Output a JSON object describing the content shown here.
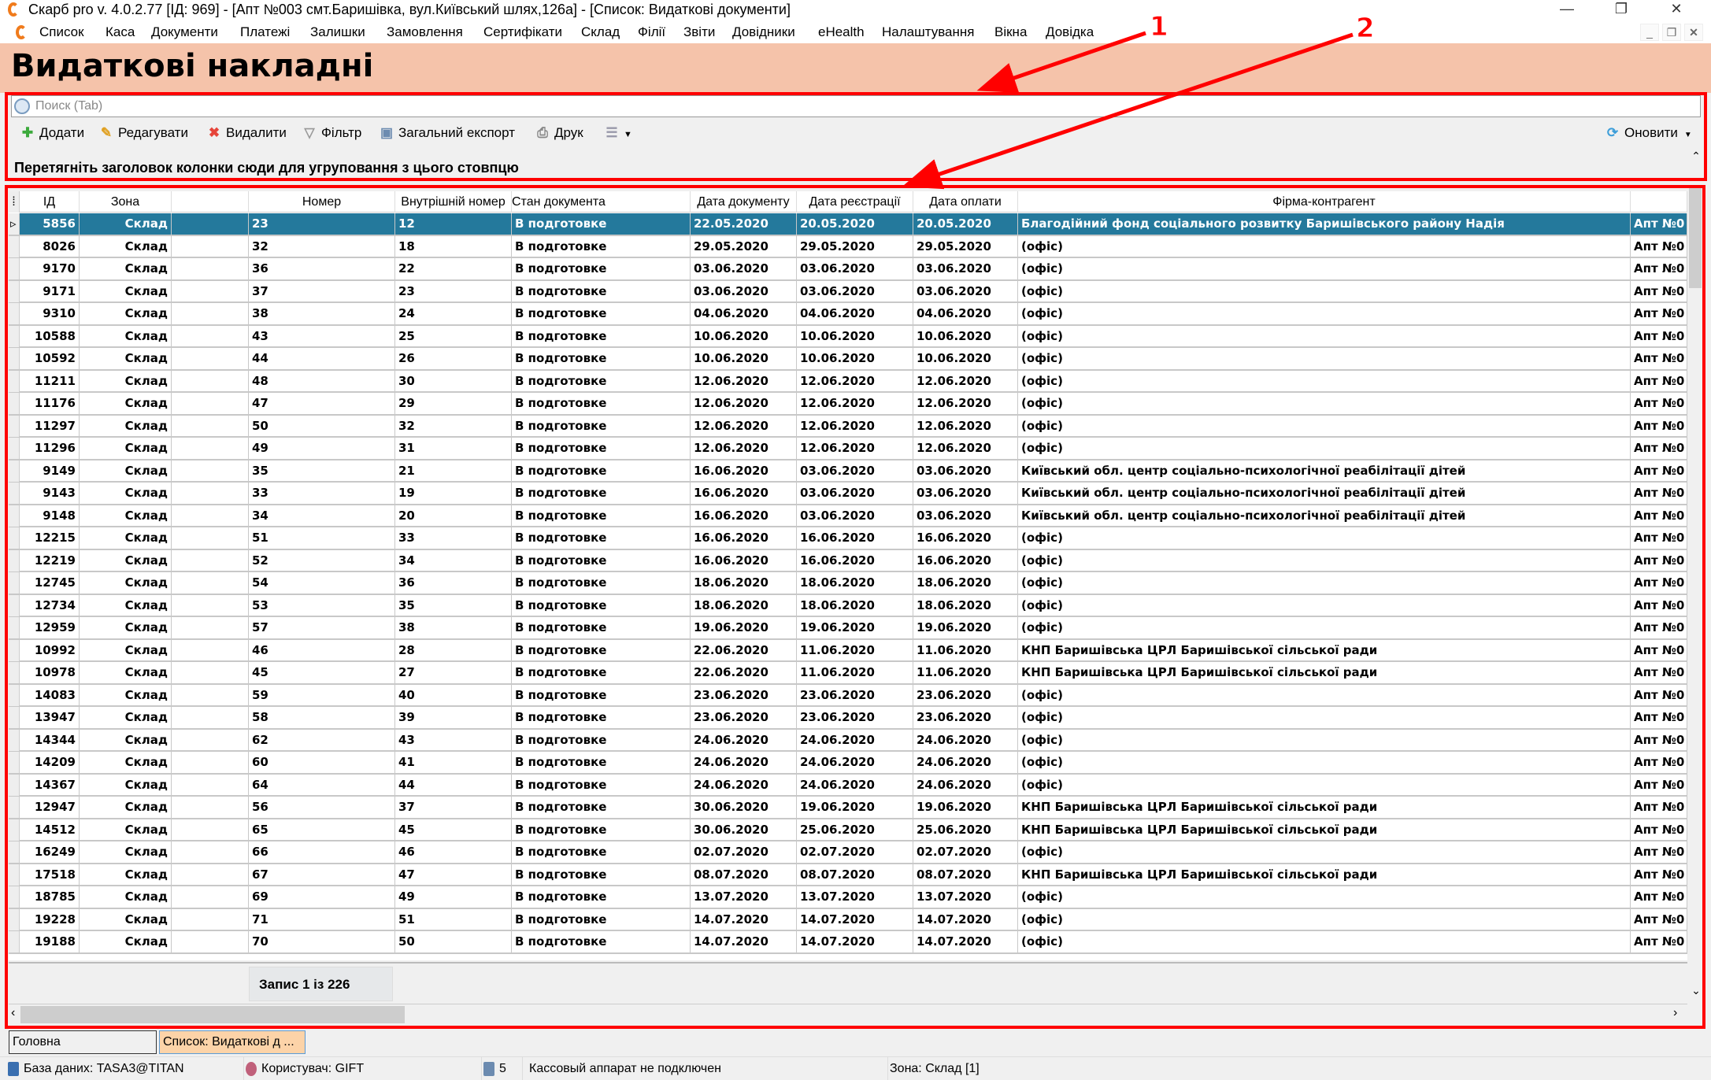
{
  "window": {
    "title": "Скарб pro v. 4.0.2.77 [ІД: 969] - [Апт №003 смт.Баришівка, вул.Київський шлях,126а] - [Список: Видаткові документи]"
  },
  "menu": [
    "Список",
    "Каса",
    "Документи",
    "Платежі",
    "Залишки",
    "Замовлення",
    "Сертифікати",
    "Склад",
    "Філії",
    "Звіти",
    "Довідники",
    "eHealth",
    "Налаштування",
    "Вікна",
    "Довідка"
  ],
  "page_title": "Видаткові накладні",
  "search": {
    "placeholder": "Поиск (Tab)",
    "value": ""
  },
  "toolbar": {
    "add": "Додати",
    "edit": "Редагувати",
    "delete": "Видалити",
    "filter": "Фільтр",
    "export": "Загальний експорт",
    "print": "Друк",
    "refresh": "Оновити"
  },
  "group_panel": "Перетягніть заголовок колонки сюди для угруповання з цього стовпцю",
  "annotations": [
    "1",
    "2"
  ],
  "colors": {
    "heading_bg": "#f5c3aa",
    "selected_row": "#24799c",
    "annotation": "#ff0000"
  },
  "table": {
    "columns": [
      "ІД",
      "Зона",
      "",
      "Номер",
      "Внутрішній номер",
      "Стан документа",
      "Дата документу",
      "Дата реєстрації",
      "Дата оплати",
      "Фірма-контрагент",
      ""
    ],
    "selected_index": 0,
    "rows": [
      [
        "5856",
        "Склад",
        "",
        "23",
        "12",
        "В подготовке",
        "22.05.2020",
        "20.05.2020",
        "20.05.2020",
        "Благодійний фонд соціального розвитку Баришівського району Надія",
        "Апт №0"
      ],
      [
        "8026",
        "Склад",
        "",
        "32",
        "18",
        "В подготовке",
        "29.05.2020",
        "29.05.2020",
        "29.05.2020",
        "(офіс)",
        "Апт №0"
      ],
      [
        "9170",
        "Склад",
        "",
        "36",
        "22",
        "В подготовке",
        "03.06.2020",
        "03.06.2020",
        "03.06.2020",
        "(офіс)",
        "Апт №0"
      ],
      [
        "9171",
        "Склад",
        "",
        "37",
        "23",
        "В подготовке",
        "03.06.2020",
        "03.06.2020",
        "03.06.2020",
        "(офіс)",
        "Апт №0"
      ],
      [
        "9310",
        "Склад",
        "",
        "38",
        "24",
        "В подготовке",
        "04.06.2020",
        "04.06.2020",
        "04.06.2020",
        "(офіс)",
        "Апт №0"
      ],
      [
        "10588",
        "Склад",
        "",
        "43",
        "25",
        "В подготовке",
        "10.06.2020",
        "10.06.2020",
        "10.06.2020",
        "(офіс)",
        "Апт №0"
      ],
      [
        "10592",
        "Склад",
        "",
        "44",
        "26",
        "В подготовке",
        "10.06.2020",
        "10.06.2020",
        "10.06.2020",
        "(офіс)",
        "Апт №0"
      ],
      [
        "11211",
        "Склад",
        "",
        "48",
        "30",
        "В подготовке",
        "12.06.2020",
        "12.06.2020",
        "12.06.2020",
        "(офіс)",
        "Апт №0"
      ],
      [
        "11176",
        "Склад",
        "",
        "47",
        "29",
        "В подготовке",
        "12.06.2020",
        "12.06.2020",
        "12.06.2020",
        "(офіс)",
        "Апт №0"
      ],
      [
        "11297",
        "Склад",
        "",
        "50",
        "32",
        "В подготовке",
        "12.06.2020",
        "12.06.2020",
        "12.06.2020",
        "(офіс)",
        "Апт №0"
      ],
      [
        "11296",
        "Склад",
        "",
        "49",
        "31",
        "В подготовке",
        "12.06.2020",
        "12.06.2020",
        "12.06.2020",
        "(офіс)",
        "Апт №0"
      ],
      [
        "9149",
        "Склад",
        "",
        "35",
        "21",
        "В подготовке",
        "16.06.2020",
        "03.06.2020",
        "03.06.2020",
        "Київський обл. центр соціально-психологічної реабілітації дітей",
        "Апт №0"
      ],
      [
        "9143",
        "Склад",
        "",
        "33",
        "19",
        "В подготовке",
        "16.06.2020",
        "03.06.2020",
        "03.06.2020",
        "Київський обл. центр соціально-психологічної реабілітації дітей",
        "Апт №0"
      ],
      [
        "9148",
        "Склад",
        "",
        "34",
        "20",
        "В подготовке",
        "16.06.2020",
        "03.06.2020",
        "03.06.2020",
        "Київський обл. центр соціально-психологічної реабілітації дітей",
        "Апт №0"
      ],
      [
        "12215",
        "Склад",
        "",
        "51",
        "33",
        "В подготовке",
        "16.06.2020",
        "16.06.2020",
        "16.06.2020",
        "(офіс)",
        "Апт №0"
      ],
      [
        "12219",
        "Склад",
        "",
        "52",
        "34",
        "В подготовке",
        "16.06.2020",
        "16.06.2020",
        "16.06.2020",
        "(офіс)",
        "Апт №0"
      ],
      [
        "12745",
        "Склад",
        "",
        "54",
        "36",
        "В подготовке",
        "18.06.2020",
        "18.06.2020",
        "18.06.2020",
        "(офіс)",
        "Апт №0"
      ],
      [
        "12734",
        "Склад",
        "",
        "53",
        "35",
        "В подготовке",
        "18.06.2020",
        "18.06.2020",
        "18.06.2020",
        "(офіс)",
        "Апт №0"
      ],
      [
        "12959",
        "Склад",
        "",
        "57",
        "38",
        "В подготовке",
        "19.06.2020",
        "19.06.2020",
        "19.06.2020",
        "(офіс)",
        "Апт №0"
      ],
      [
        "10992",
        "Склад",
        "",
        "46",
        "28",
        "В подготовке",
        "22.06.2020",
        "11.06.2020",
        "11.06.2020",
        "КНП Баришівська ЦРЛ Баришівської сільської ради",
        "Апт №0"
      ],
      [
        "10978",
        "Склад",
        "",
        "45",
        "27",
        "В подготовке",
        "22.06.2020",
        "11.06.2020",
        "11.06.2020",
        "КНП Баришівська ЦРЛ Баришівської сільської ради",
        "Апт №0"
      ],
      [
        "14083",
        "Склад",
        "",
        "59",
        "40",
        "В подготовке",
        "23.06.2020",
        "23.06.2020",
        "23.06.2020",
        "(офіс)",
        "Апт №0"
      ],
      [
        "13947",
        "Склад",
        "",
        "58",
        "39",
        "В подготовке",
        "23.06.2020",
        "23.06.2020",
        "23.06.2020",
        "(офіс)",
        "Апт №0"
      ],
      [
        "14344",
        "Склад",
        "",
        "62",
        "43",
        "В подготовке",
        "24.06.2020",
        "24.06.2020",
        "24.06.2020",
        "(офіс)",
        "Апт №0"
      ],
      [
        "14209",
        "Склад",
        "",
        "60",
        "41",
        "В подготовке",
        "24.06.2020",
        "24.06.2020",
        "24.06.2020",
        "(офіс)",
        "Апт №0"
      ],
      [
        "14367",
        "Склад",
        "",
        "64",
        "44",
        "В подготовке",
        "24.06.2020",
        "24.06.2020",
        "24.06.2020",
        "(офіс)",
        "Апт №0"
      ],
      [
        "12947",
        "Склад",
        "",
        "56",
        "37",
        "В подготовке",
        "30.06.2020",
        "19.06.2020",
        "19.06.2020",
        "КНП Баришівська ЦРЛ Баришівської сільської ради",
        "Апт №0"
      ],
      [
        "14512",
        "Склад",
        "",
        "65",
        "45",
        "В подготовке",
        "30.06.2020",
        "25.06.2020",
        "25.06.2020",
        "КНП Баришівська ЦРЛ Баришівської сільської ради",
        "Апт №0"
      ],
      [
        "16249",
        "Склад",
        "",
        "66",
        "46",
        "В подготовке",
        "02.07.2020",
        "02.07.2020",
        "02.07.2020",
        "(офіс)",
        "Апт №0"
      ],
      [
        "17518",
        "Склад",
        "",
        "67",
        "47",
        "В подготовке",
        "08.07.2020",
        "08.07.2020",
        "08.07.2020",
        "КНП Баришівська ЦРЛ Баришівської сільської ради",
        "Апт №0"
      ],
      [
        "18785",
        "Склад",
        "",
        "69",
        "49",
        "В подготовке",
        "13.07.2020",
        "13.07.2020",
        "13.07.2020",
        "(офіс)",
        "Апт №0"
      ],
      [
        "19228",
        "Склад",
        "",
        "71",
        "51",
        "В подготовке",
        "14.07.2020",
        "14.07.2020",
        "14.07.2020",
        "(офіс)",
        "Апт №0"
      ],
      [
        "19188",
        "Склад",
        "",
        "70",
        "50",
        "В подготовке",
        "14.07.2020",
        "14.07.2020",
        "14.07.2020",
        "(офіс)",
        "Апт №0"
      ]
    ]
  },
  "footer": {
    "record_counter": "Запис 1 із 226"
  },
  "tabs": [
    "Головна",
    "Список: Видаткові д ..."
  ],
  "status": {
    "db": "База даних: TASA3@TITAN",
    "user": "Користувач: GIFT",
    "count": "5",
    "cash_register": "Кассовый аппарат не подключен",
    "zone": "Зона: Склад [1]"
  }
}
